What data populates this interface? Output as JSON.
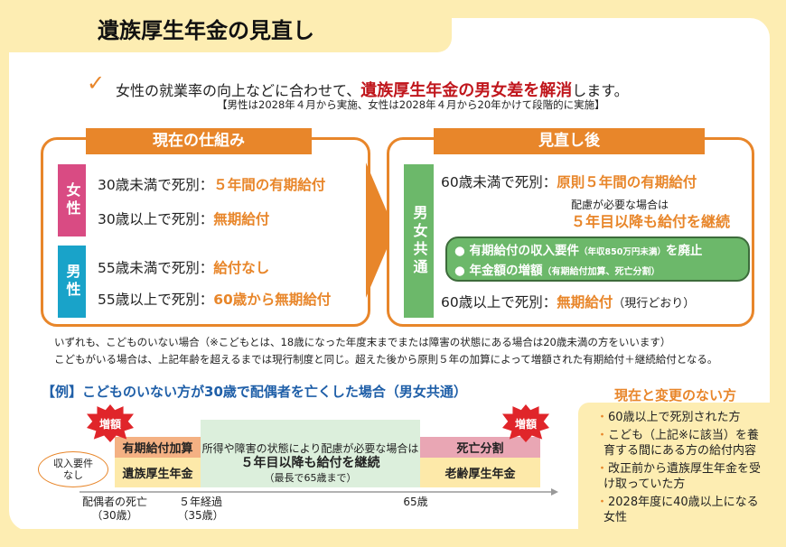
{
  "title": "遺族厚生年金の見直し",
  "lead": {
    "text_before": "女性の就業率の向上などに合わせて、",
    "highlight": "遺族厚生年金の男女差を解消",
    "text_after": "します。",
    "sub": "【男性は2028年４月から実施、女性は2028年４月から20年かけて段階的に実施】"
  },
  "current": {
    "header": "現在の仕組み",
    "female_label": "女性",
    "male_label": "男性",
    "rows": [
      {
        "cond": "30歳未満で死別：",
        "result": "５年間の有期給付"
      },
      {
        "cond": "30歳以上で死別：",
        "result": "無期給付"
      },
      {
        "cond": "55歳未満で死別：",
        "result": "給付なし"
      },
      {
        "cond": "55歳以上で死別：",
        "result": "60歳から無期給付"
      }
    ]
  },
  "revised": {
    "header": "見直し後",
    "label": "男女共通",
    "row1": {
      "cond": "60歳未満で死別：",
      "result": "原則５年間の有期給付"
    },
    "care_note": "配慮が必要な場合は",
    "care_result": "５年目以降も給付を継続",
    "bullets": [
      {
        "main": "● 有期給付の収入要件",
        "small": "（年収850万円未満）",
        "tail": "を廃止"
      },
      {
        "main": "● 年金額の増額",
        "small": "（有期給付加算、死亡分割）",
        "tail": ""
      }
    ],
    "row2": {
      "cond": "60歳以上で死別：",
      "result": "無期給付",
      "note": "（現行どおり）"
    }
  },
  "notes": [
    "いずれも、こどものいない場合（※こどもとは、18歳になった年度末までまたは障害の状態にある場合は20歳未満の方をいいます）",
    "こどもがいる場合は、上記年齢を超えるまでは現行制度と同じ。超えた後から原則５年の加算によって増額された有期給付＋継続給付となる。"
  ],
  "example": {
    "heading": "【例】こどものいない方が30歳で配偶者を亡くした場合（男女共通）",
    "burst": "増額",
    "bubble": "収入要件なし",
    "bar_addition": "有期給付加算",
    "bar_survivor": "遺族厚生年金",
    "middle_line1": "所得や障害の状態により配慮が必要な場合は",
    "middle_line2": "５年目以降も給付を継続",
    "middle_line3": "（最長で65歳まで）",
    "bar_split": "死亡分割",
    "bar_old_age": "老齢厚生年金",
    "axis": [
      {
        "l1": "配偶者の死亡",
        "l2": "（30歳）"
      },
      {
        "l1": "５年経過",
        "l2": "（35歳）"
      },
      {
        "l1": "65歳",
        "l2": ""
      }
    ]
  },
  "unchanged": {
    "title": "現在と変更のない方",
    "items": [
      "60歳以上で死別された方",
      "こども（上記※に該当）を養育する間にある方の給付内容",
      "改正前から遺族厚生年金を受け取っていた方",
      "2028年度に40歳以上になる女性"
    ]
  },
  "colors": {
    "accent": "#e8862a",
    "female": "#d94b83",
    "male": "#19a3c9",
    "common": "#6cb86a",
    "highlight": "#c0161c",
    "background": "#fdedb2"
  }
}
